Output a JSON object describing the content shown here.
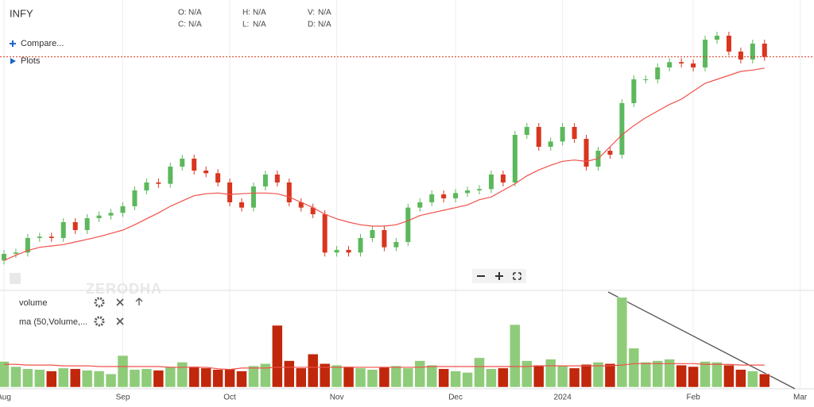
{
  "header": {
    "symbol": "INFY",
    "fields": [
      {
        "key": "O:",
        "value": "N/A"
      },
      {
        "key": "H:",
        "value": "N/A"
      },
      {
        "key": "V:",
        "value": "N/A"
      },
      {
        "key": "C:",
        "value": "N/A"
      },
      {
        "key": "L:",
        "value": "N/A"
      },
      {
        "key": "D:",
        "value": "N/A"
      }
    ]
  },
  "menu": [
    "Compare...",
    "Plots"
  ],
  "watermark": "ZERODHA",
  "studies": [
    "volume",
    "ma (50,Volume,..."
  ],
  "chart_data": {
    "type": "candlestick",
    "categories": [
      "Aug",
      null,
      null,
      null,
      null,
      null,
      null,
      null,
      null,
      null,
      "Sep",
      null,
      null,
      null,
      null,
      null,
      null,
      null,
      null,
      "Oct",
      null,
      null,
      null,
      null,
      null,
      null,
      null,
      null,
      "Nov",
      null,
      null,
      null,
      null,
      null,
      null,
      null,
      null,
      null,
      "Dec",
      null,
      null,
      null,
      null,
      null,
      null,
      null,
      null,
      "2024",
      null,
      null,
      null,
      null,
      null,
      null,
      null,
      null,
      null,
      null,
      "Feb",
      null,
      null,
      null,
      null,
      null,
      null,
      null,
      null,
      "Mar"
    ],
    "open": [
      1366,
      1376,
      1378,
      1400,
      1402,
      1400,
      1424,
      1412,
      1430,
      1434,
      1438,
      1448,
      1472,
      1484,
      1482,
      1508,
      1520,
      1502,
      1498,
      1484,
      1454,
      1446,
      1478,
      1496,
      1484,
      1454,
      1446,
      1436,
      1378,
      1382,
      1378,
      1400,
      1412,
      1386,
      1394,
      1446,
      1454,
      1466,
      1460,
      1468,
      1472,
      1474,
      1496,
      1484,
      1556,
      1568,
      1538,
      1546,
      1568,
      1550,
      1508,
      1532,
      1526,
      1604,
      1640,
      1640,
      1658,
      1666,
      1664,
      1658,
      1700,
      1706,
      1682,
      1670,
      1694,
      null,
      null,
      null
    ],
    "high": [
      1382,
      1384,
      1406,
      1408,
      1408,
      1430,
      1430,
      1436,
      1440,
      1444,
      1454,
      1478,
      1490,
      1490,
      1514,
      1526,
      1526,
      1508,
      1504,
      1490,
      1460,
      1484,
      1502,
      1502,
      1490,
      1460,
      1452,
      1442,
      1388,
      1388,
      1406,
      1418,
      1418,
      1400,
      1452,
      1460,
      1472,
      1472,
      1474,
      1478,
      1480,
      1502,
      1502,
      1562,
      1574,
      1574,
      1552,
      1574,
      1574,
      1556,
      1538,
      1538,
      1610,
      1646,
      1646,
      1664,
      1672,
      1672,
      1670,
      1706,
      1712,
      1712,
      1688,
      1700,
      1700,
      null,
      null,
      null
    ],
    "low": [
      1360,
      1370,
      1372,
      1394,
      1394,
      1394,
      1406,
      1406,
      1424,
      1428,
      1432,
      1442,
      1466,
      1476,
      1476,
      1502,
      1496,
      1492,
      1478,
      1448,
      1440,
      1440,
      1472,
      1478,
      1448,
      1440,
      1430,
      1372,
      1372,
      1372,
      1372,
      1394,
      1380,
      1380,
      1388,
      1440,
      1448,
      1454,
      1454,
      1462,
      1466,
      1468,
      1478,
      1478,
      1550,
      1532,
      1532,
      1540,
      1544,
      1502,
      1502,
      1520,
      1520,
      1598,
      1634,
      1634,
      1652,
      1658,
      1652,
      1652,
      1694,
      1676,
      1664,
      1664,
      1668,
      null,
      null,
      null
    ],
    "close": [
      1376,
      1378,
      1400,
      1402,
      1400,
      1424,
      1412,
      1430,
      1434,
      1438,
      1448,
      1472,
      1484,
      1482,
      1508,
      1520,
      1502,
      1498,
      1484,
      1454,
      1446,
      1478,
      1496,
      1484,
      1454,
      1446,
      1436,
      1378,
      1382,
      1378,
      1400,
      1412,
      1386,
      1394,
      1446,
      1454,
      1466,
      1460,
      1468,
      1472,
      1474,
      1496,
      1484,
      1556,
      1568,
      1538,
      1546,
      1568,
      1550,
      1508,
      1532,
      1526,
      1604,
      1640,
      1640,
      1658,
      1666,
      1664,
      1658,
      1700,
      1706,
      1682,
      1670,
      1694,
      1674,
      null,
      null,
      null
    ],
    "ma": [
      1366,
      1374,
      1381,
      1386,
      1388,
      1390,
      1394,
      1398,
      1402,
      1407,
      1412,
      1420,
      1429,
      1438,
      1448,
      1456,
      1464,
      1467,
      1468,
      1466,
      1467,
      1468,
      1468,
      1467,
      1462,
      1454,
      1446,
      1436,
      1429,
      1424,
      1420,
      1418,
      1418,
      1420,
      1426,
      1434,
      1438,
      1442,
      1446,
      1450,
      1458,
      1462,
      1472,
      1482,
      1494,
      1503,
      1510,
      1516,
      1518,
      1516,
      1520,
      1538,
      1556,
      1570,
      1582,
      1592,
      1602,
      1610,
      1622,
      1634,
      1640,
      1646,
      1652,
      1654,
      1657,
      null,
      null,
      null
    ],
    "volume": [
      3.5,
      2.8,
      2.5,
      2.4,
      2.2,
      2.6,
      2.5,
      2.3,
      2.2,
      1.8,
      4.3,
      2.4,
      2.5,
      2.3,
      2.8,
      3.4,
      2.8,
      2.6,
      2.4,
      2.5,
      2.2,
      2.9,
      3.2,
      8.4,
      3.6,
      2.6,
      4.5,
      3.2,
      3.0,
      2.8,
      2.6,
      2.4,
      2.7,
      2.9,
      2.6,
      3.6,
      3.0,
      2.5,
      2.2,
      2.0,
      4.0,
      2.5,
      2.6,
      8.5,
      3.6,
      3.0,
      3.8,
      2.9,
      2.6,
      3.1,
      3.4,
      3.2,
      12.2,
      5.3,
      3.4,
      3.6,
      3.8,
      3.0,
      2.8,
      3.5,
      3.4,
      3.0,
      2.4,
      2.2,
      1.8,
      null,
      null,
      null
    ],
    "volume_ma": [
      3.1,
      3.1,
      3.0,
      3.0,
      3.0,
      2.9,
      2.9,
      2.9,
      2.8,
      2.8,
      2.8,
      2.8,
      2.8,
      2.8,
      2.7,
      2.7,
      2.7,
      2.7,
      2.5,
      2.4,
      2.6,
      2.6,
      2.6,
      2.7,
      2.7,
      2.7,
      2.7,
      2.7,
      2.7,
      2.7,
      2.7,
      2.7,
      2.7,
      2.7,
      2.7,
      2.7,
      2.8,
      2.8,
      2.8,
      2.8,
      2.8,
      2.8,
      2.8,
      2.8,
      2.8,
      2.9,
      2.9,
      2.9,
      2.9,
      2.9,
      2.9,
      2.9,
      3.0,
      3.2,
      3.2,
      3.2,
      3.2,
      3.2,
      3.2,
      3.1,
      3.1,
      3.1,
      3.0,
      3.0,
      3.0,
      null,
      null,
      null
    ],
    "ylim": [
      1328,
      1760
    ],
    "vlim": [
      0,
      12.5
    ],
    "up_color": "#5cb85c",
    "down_color": "#d9351f",
    "vol_up_color": "#8fcc7a",
    "vol_down_color": "#c0270b",
    "ma_color": "#f0504a"
  }
}
